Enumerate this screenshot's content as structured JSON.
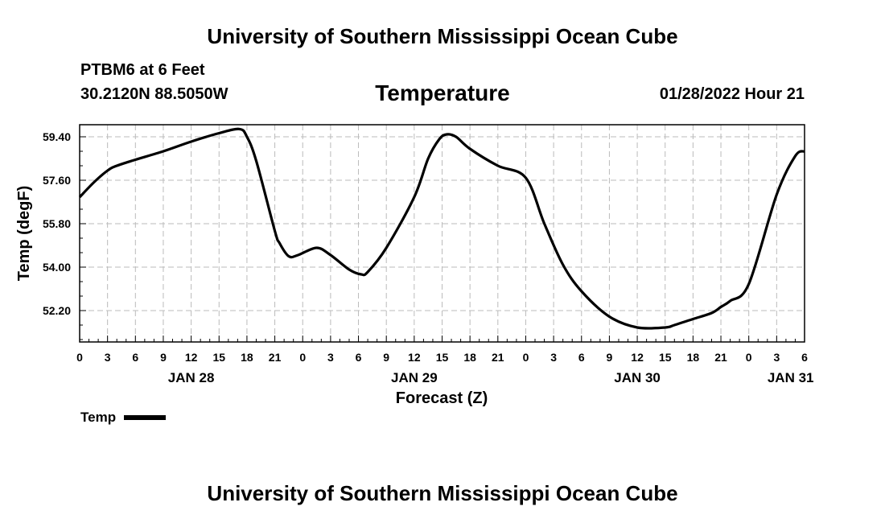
{
  "header": {
    "title_top": "University of Southern Mississippi Ocean Cube",
    "station": "PTBM6 at 6 Feet",
    "coords": "30.2120N  88.5050W",
    "plot_title": "Temperature",
    "datetime": "01/28/2022 Hour 21"
  },
  "footer": {
    "title_bottom": "University of Southern Mississippi Ocean Cube"
  },
  "legend": {
    "label": "Temp",
    "color": "#000000"
  },
  "chart_data": {
    "type": "line",
    "title": "Temperature",
    "xlabel": "Forecast (Z)",
    "ylabel": "Temp (degF)",
    "grid": true,
    "legend_position": "bottom-left",
    "ylim": [
      50.9,
      59.9
    ],
    "yticks": [
      52.2,
      54.0,
      55.8,
      57.6,
      59.4
    ],
    "ytick_labels": [
      "52.20",
      "54.00",
      "55.80",
      "57.60",
      "59.40"
    ],
    "xlim_hours": [
      0,
      78
    ],
    "xticks_hours": [
      0,
      3,
      6,
      9,
      12,
      15,
      18,
      21,
      24,
      27,
      30,
      33,
      36,
      39,
      42,
      45,
      48,
      51,
      54,
      57,
      60,
      63,
      66,
      69,
      72,
      75,
      78
    ],
    "xtick_labels": [
      "0",
      "3",
      "6",
      "9",
      "12",
      "15",
      "18",
      "21",
      "0",
      "3",
      "6",
      "9",
      "12",
      "15",
      "18",
      "21",
      "0",
      "3",
      "6",
      "9",
      "12",
      "15",
      "18",
      "21",
      "0",
      "3",
      "6"
    ],
    "date_labels": [
      {
        "hour": 12,
        "label": "JAN 28"
      },
      {
        "hour": 36,
        "label": "JAN 29"
      },
      {
        "hour": 60,
        "label": "JAN 30"
      },
      {
        "hour": 76.5,
        "label": "JAN 31"
      }
    ],
    "series": [
      {
        "name": "Temp",
        "x": [
          0,
          1.5,
          3,
          4,
          6,
          9,
          12,
          15,
          17.2,
          18,
          19,
          21,
          21.5,
          22.5,
          23.5,
          25.5,
          27,
          29,
          30.3,
          31,
          33,
          36,
          37.5,
          38.7,
          39.5,
          40.5,
          42,
          45,
          48,
          50,
          52,
          54,
          57,
          60,
          63,
          64,
          66,
          68,
          69,
          70,
          72,
          75,
          77,
          78
        ],
        "y": [
          56.9,
          57.5,
          58.0,
          58.2,
          58.45,
          58.8,
          59.2,
          59.55,
          59.72,
          59.4,
          58.4,
          55.5,
          55.0,
          54.45,
          54.5,
          54.8,
          54.5,
          53.9,
          53.7,
          53.8,
          54.8,
          56.9,
          58.5,
          59.3,
          59.5,
          59.4,
          58.9,
          58.2,
          57.7,
          55.8,
          54.1,
          53.0,
          51.95,
          51.5,
          51.5,
          51.6,
          51.85,
          52.1,
          52.35,
          52.6,
          53.3,
          57.0,
          58.6,
          58.8
        ]
      }
    ]
  }
}
